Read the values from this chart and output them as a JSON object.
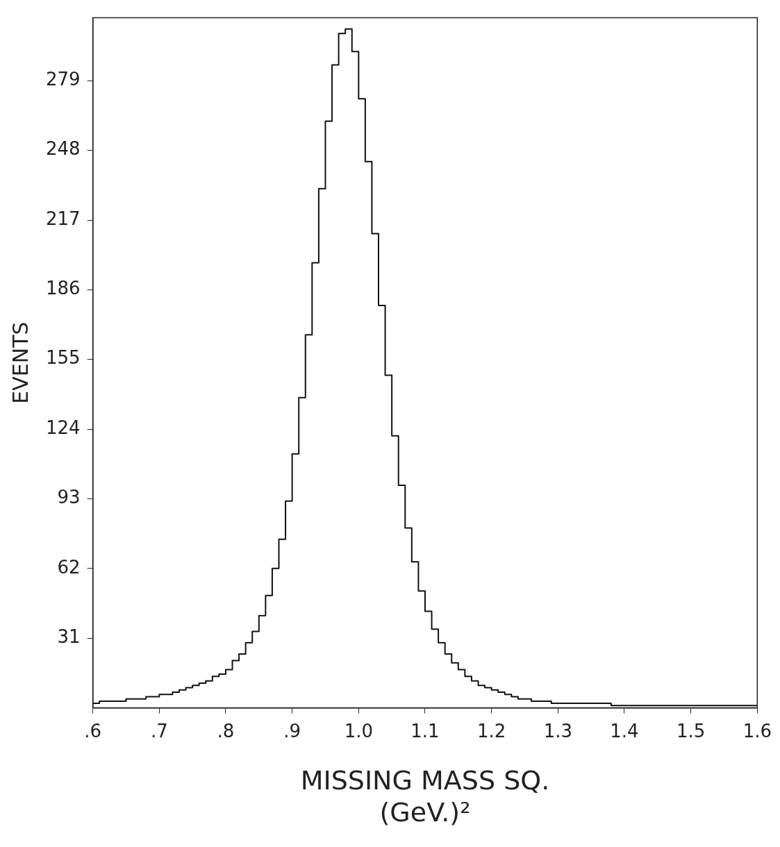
{
  "chart_data": {
    "type": "histogram",
    "xlabel": "MISSING MASS SQ.\n(GeV.)²",
    "ylabel": "EVENTS",
    "color": "#111111",
    "bins": [
      0.6,
      0.61,
      0.62,
      0.63,
      0.64,
      0.65,
      0.66,
      0.67,
      0.68,
      0.69,
      0.7,
      0.71,
      0.72,
      0.73,
      0.74,
      0.75,
      0.76,
      0.77,
      0.78,
      0.79,
      0.8,
      0.81,
      0.82,
      0.83,
      0.84,
      0.85,
      0.86,
      0.87,
      0.88,
      0.89,
      0.9,
      0.91,
      0.92,
      0.93,
      0.94,
      0.95,
      0.96,
      0.97,
      0.98,
      0.99,
      1.0,
      1.01,
      1.02,
      1.03,
      1.04,
      1.05,
      1.06,
      1.07,
      1.08,
      1.09,
      1.1,
      1.11,
      1.12,
      1.13,
      1.14,
      1.15,
      1.16,
      1.17,
      1.18,
      1.19,
      1.2,
      1.21,
      1.22,
      1.23,
      1.24,
      1.25,
      1.26,
      1.27,
      1.28,
      1.29,
      1.3,
      1.31,
      1.32,
      1.33,
      1.34,
      1.35,
      1.36,
      1.37,
      1.38,
      1.39,
      1.4,
      1.41,
      1.42,
      1.43,
      1.44,
      1.45,
      1.46,
      1.47,
      1.48,
      1.49,
      1.5,
      1.51,
      1.52,
      1.53,
      1.54,
      1.55,
      1.56,
      1.57,
      1.58,
      1.59,
      1.6
    ],
    "values": [
      2,
      3,
      3,
      3,
      3,
      4,
      4,
      4,
      5,
      5,
      6,
      6,
      7,
      8,
      9,
      10,
      11,
      12,
      14,
      15,
      17,
      21,
      24,
      29,
      34,
      41,
      50,
      62,
      75,
      92,
      113,
      138,
      166,
      198,
      231,
      261,
      286,
      300,
      302,
      292,
      271,
      243,
      211,
      179,
      148,
      121,
      99,
      80,
      65,
      52,
      43,
      35,
      29,
      24,
      20,
      17,
      14,
      12,
      10,
      9,
      8,
      7,
      6,
      5,
      4,
      4,
      3,
      3,
      3,
      2,
      2,
      2,
      2,
      2,
      2,
      2,
      2,
      2,
      1,
      1,
      1,
      1,
      1,
      1,
      1,
      1,
      1,
      1,
      1,
      1,
      1,
      1,
      1,
      1,
      1,
      1,
      1,
      1,
      1,
      1
    ],
    "xlim": [
      0.6,
      1.6
    ],
    "ylim": [
      0,
      307
    ],
    "xticks": [
      {
        "value": 0.6,
        "label": ".6"
      },
      {
        "value": 0.7,
        "label": ".7"
      },
      {
        "value": 0.8,
        "label": ".8"
      },
      {
        "value": 0.9,
        "label": ".9"
      },
      {
        "value": 1.0,
        "label": "1.0"
      },
      {
        "value": 1.1,
        "label": "1.1"
      },
      {
        "value": 1.2,
        "label": "1.2"
      },
      {
        "value": 1.3,
        "label": "1.3"
      },
      {
        "value": 1.4,
        "label": "1.4"
      },
      {
        "value": 1.5,
        "label": "1.5"
      },
      {
        "value": 1.6,
        "label": "1.6"
      }
    ],
    "yticks": [
      31,
      62,
      93,
      124,
      155,
      186,
      217,
      248,
      279
    ]
  }
}
